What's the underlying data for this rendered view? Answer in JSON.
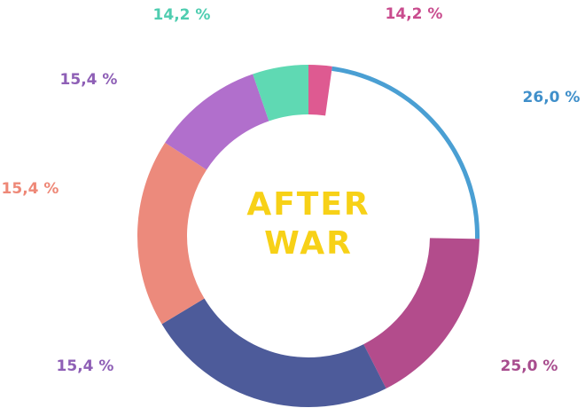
{
  "chart_data": {
    "type": "pie",
    "variant": "donut",
    "center_label": [
      "AFTER",
      "WAR"
    ],
    "center_color": "#f7d117",
    "slices": [
      {
        "label": "14,2 %",
        "sweep_deg": 8,
        "thickness": "thick",
        "color": "#de5a91",
        "label_color": "#c94c8e"
      },
      {
        "label": "26,0 %",
        "sweep_deg": 83,
        "thickness": "thin",
        "color": "#4a9fd3",
        "label_color": "#3f8fca"
      },
      {
        "label": "25,0 %",
        "sweep_deg": 62,
        "thickness": "thick",
        "color": "#b34c8c",
        "label_color": "#a84d8e"
      },
      {
        "label": "",
        "sweep_deg": 86,
        "thickness": "thick",
        "color": "#4d5b9a",
        "label_color": "#4d5b9a"
      },
      {
        "label": "15,4 %",
        "sweep_deg": 64,
        "thickness": "thick",
        "color": "#ec8a7c",
        "label_color": "#ee8877"
      },
      {
        "label": "15,4 %",
        "sweep_deg": 38,
        "thickness": "thick",
        "color": "#b16fcc",
        "label_color": "#8e5fb6"
      },
      {
        "label": "14,2 %",
        "sweep_deg": 19,
        "thickness": "thick",
        "color": "#5fd9b3",
        "label_color": "#4fcdb0"
      }
    ],
    "extra_labels": [
      {
        "label": "15,4 %",
        "color": "#8e5fb6"
      }
    ]
  }
}
